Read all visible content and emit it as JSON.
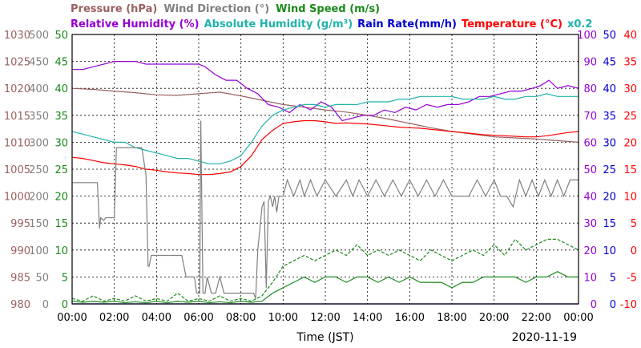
{
  "chart_data": {
    "type": "line",
    "date_label": "2020-11-19",
    "xlabel": "Time (JST)",
    "x_hours_range": [
      0,
      24
    ],
    "x_tick_labels": [
      "00:00",
      "02:00",
      "04:00",
      "06:00",
      "08:00",
      "10:00",
      "12:00",
      "14:00",
      "16:00",
      "18:00",
      "20:00",
      "22:00",
      "00:00"
    ],
    "grid": true,
    "legend_row1": [
      {
        "key": "pressure",
        "text": "Pressure (hPa)",
        "color": "#9a6060"
      },
      {
        "key": "wind_dir",
        "text": "Wind Direction (°)",
        "color": "#808080"
      },
      {
        "key": "wind_speed",
        "text": "Wind Speed (m/s)",
        "color": "#1a8a1a"
      }
    ],
    "legend_row2": [
      {
        "key": "rh",
        "text": "Relative Humidity (%)",
        "color": "#9400d3"
      },
      {
        "key": "ah",
        "text": "Absolute Humidity (g/m³)",
        "color": "#20b2aa"
      },
      {
        "key": "rain",
        "text": "Rain Rate(mm/h)",
        "color": "#0000cd"
      },
      {
        "key": "temp",
        "text": "Temperature (°C)",
        "color": "#ff0000"
      },
      {
        "key": "ah_scale",
        "text": "x0.2",
        "color": "#20b2aa"
      }
    ],
    "axes": {
      "pressure": {
        "min": 980,
        "max": 1030,
        "ticks": [
          "1030",
          "1025",
          "1020",
          "1015",
          "1010",
          "1005",
          "1000",
          "995",
          "990",
          "985",
          "980"
        ],
        "color": "#9a6060"
      },
      "wind_dir": {
        "min": 0,
        "max": 500,
        "ticks": [
          "500",
          "450",
          "400",
          "350",
          "300",
          "250",
          "200",
          "150",
          "100",
          "50",
          "0"
        ],
        "color": "#808080"
      },
      "wind_speed": {
        "min": 0,
        "max": 50,
        "ticks": [
          "50",
          "45",
          "40",
          "35",
          "30",
          "25",
          "20",
          "15",
          "10",
          "5",
          "0"
        ],
        "color": "#1a8a1a"
      },
      "rh": {
        "min": 0,
        "max": 100,
        "ticks": [
          "100",
          "90",
          "80",
          "70",
          "60",
          "50",
          "40",
          "30",
          "20",
          "10",
          "0"
        ],
        "color": "#9400d3"
      },
      "rain": {
        "min": 0,
        "max": 50,
        "ticks": [
          "50",
          "45",
          "40",
          "35",
          "30",
          "25",
          "20",
          "15",
          "10",
          "5",
          "0"
        ],
        "color": "#0000cd"
      },
      "temp": {
        "min": -10,
        "max": 40,
        "ticks": [
          "40",
          "35",
          "30",
          "25",
          "20",
          "15",
          "10",
          "5",
          "0",
          "-5",
          "-10"
        ],
        "color": "#ff0000"
      }
    },
    "series": [
      {
        "key": "pressure",
        "name": "Pressure (hPa)",
        "axis": "pressure",
        "color": "#9a6060",
        "style": "solid",
        "x": [
          0,
          1,
          2,
          3,
          4,
          5,
          6,
          7,
          8,
          9,
          10,
          11,
          12,
          13,
          14,
          15,
          16,
          17,
          18,
          19,
          20,
          21,
          22,
          23,
          24
        ],
        "y": [
          1020,
          1019.8,
          1019.5,
          1019.2,
          1018.8,
          1018.7,
          1019,
          1019.3,
          1018.6,
          1017.8,
          1017,
          1016.5,
          1016,
          1015.6,
          1015,
          1014.3,
          1013.5,
          1012.7,
          1012,
          1011.5,
          1011,
          1010.8,
          1010.6,
          1010.3,
          1010
        ]
      },
      {
        "key": "rh",
        "name": "Relative Humidity (%)",
        "axis": "rh",
        "color": "#9400d3",
        "style": "solid",
        "x": [
          0,
          0.5,
          1,
          1.5,
          2,
          2.5,
          3,
          3.5,
          4,
          4.5,
          5,
          5.5,
          6,
          6.3,
          6.8,
          7.3,
          7.8,
          8.3,
          8.8,
          9.3,
          9.8,
          10.3,
          10.8,
          11.3,
          11.8,
          12.3,
          12.8,
          13.3,
          13.8,
          14.3,
          14.8,
          15.3,
          15.8,
          16.3,
          16.8,
          17.3,
          17.8,
          18.3,
          18.8,
          19.3,
          19.8,
          20.3,
          20.8,
          21.3,
          21.8,
          22.2,
          22.6,
          23,
          23.5,
          24
        ],
        "y": [
          87,
          87,
          88,
          89,
          90,
          90,
          90,
          89,
          89,
          89,
          89,
          89,
          89,
          88,
          85,
          83,
          83,
          80,
          78,
          74,
          73,
          71,
          74,
          72,
          75,
          73,
          68,
          69,
          70,
          70,
          72,
          71,
          73,
          72,
          74,
          73,
          74,
          74,
          75,
          77,
          77,
          78,
          79,
          79,
          80,
          81,
          83,
          80,
          81,
          80
        ]
      },
      {
        "key": "ah",
        "name": "Absolute Humidity (g/m³)",
        "axis": "rh",
        "color": "#20b2aa",
        "style": "solid",
        "x": [
          0,
          0.5,
          1,
          1.5,
          2,
          2.5,
          3,
          3.5,
          4,
          4.5,
          5,
          5.5,
          6,
          6.5,
          7,
          7.5,
          8,
          8.5,
          9,
          9.5,
          10,
          10.5,
          11,
          11.5,
          12,
          12.5,
          13,
          13.5,
          14,
          14.5,
          15,
          15.5,
          16,
          16.5,
          17,
          17.5,
          18,
          18.5,
          19,
          19.5,
          20,
          20.5,
          21,
          21.5,
          22,
          22.5,
          23,
          23.5,
          24
        ],
        "y": [
          64,
          63,
          62,
          61,
          60,
          60,
          58,
          57,
          56,
          55,
          54,
          54,
          53,
          52,
          52,
          53,
          55,
          60,
          66,
          70,
          72,
          73,
          74,
          74,
          73,
          74,
          74,
          74,
          75,
          75,
          75,
          76,
          76,
          77,
          77,
          77,
          77,
          76,
          76,
          76,
          77,
          76,
          76,
          77,
          77,
          78,
          77,
          77,
          77
        ]
      },
      {
        "key": "temp",
        "name": "Temperature (°C)",
        "axis": "temp",
        "color": "#ff0000",
        "style": "solid",
        "x": [
          0,
          0.5,
          1,
          1.5,
          2,
          2.5,
          3,
          3.5,
          4,
          4.5,
          5,
          5.5,
          6,
          6.5,
          7,
          7.5,
          8,
          8.5,
          9,
          9.5,
          10,
          10.5,
          11,
          11.5,
          12,
          12.5,
          13,
          13.5,
          14,
          14.5,
          15,
          15.5,
          16,
          16.5,
          17,
          17.5,
          18,
          18.5,
          19,
          19.5,
          20,
          20.5,
          21,
          21.5,
          22,
          22.5,
          23,
          23.5,
          24
        ],
        "y": [
          17.2,
          17,
          16.6,
          16.2,
          16,
          15.8,
          15.5,
          15,
          14.8,
          14.5,
          14.3,
          14.2,
          14,
          14,
          14.2,
          14.5,
          15.5,
          17.5,
          20.5,
          22.2,
          23.5,
          23.8,
          24,
          24,
          23.8,
          23.5,
          23.6,
          23.5,
          23.4,
          23.2,
          23,
          22.8,
          22.7,
          22.6,
          22.4,
          22.2,
          22,
          21.8,
          21.6,
          21.4,
          21.3,
          21.2,
          21.1,
          21,
          21,
          21.2,
          21.5,
          21.8,
          22
        ]
      },
      {
        "key": "wind_dir",
        "name": "Wind Direction (°)",
        "axis": "wind_dir",
        "color": "#808080",
        "style": "solid",
        "x": [
          0,
          1.2,
          1.3,
          1.35,
          1.5,
          1.6,
          2,
          2.1,
          3,
          3.3,
          3.5,
          3.6,
          3.65,
          3.75,
          4,
          4.5,
          5.2,
          5.4,
          5.8,
          5.9,
          6.0,
          6.05,
          6.1,
          6.2,
          6.3,
          6.4,
          6.6,
          6.8,
          7.0,
          7.2,
          7.5,
          8,
          8.5,
          8.6,
          8.7,
          8.8,
          9,
          9.1,
          9.2,
          9.3,
          9.4,
          9.5,
          9.6,
          9.7,
          9.8,
          9.9,
          10,
          10.2,
          10.5,
          10.8,
          11,
          11.3,
          11.6,
          12,
          12.5,
          13,
          13.3,
          13.6,
          14,
          14.4,
          14.8,
          15.2,
          15.6,
          16,
          16.4,
          16.8,
          17.2,
          17.6,
          18,
          18.4,
          18.8,
          19.2,
          19.6,
          20,
          20.3,
          20.6,
          20.9,
          21.2,
          21.5,
          21.8,
          22.1,
          22.4,
          22.7,
          23,
          23.3,
          23.6,
          24
        ],
        "y": [
          225,
          225,
          140,
          160,
          155,
          160,
          160,
          290,
          290,
          290,
          240,
          70,
          70,
          90,
          90,
          90,
          90,
          50,
          50,
          20,
          20,
          20,
          340,
          20,
          20,
          50,
          20,
          20,
          50,
          20,
          20,
          20,
          20,
          20,
          10,
          100,
          180,
          190,
          30,
          190,
          200,
          180,
          200,
          170,
          200,
          200,
          200,
          230,
          200,
          230,
          200,
          230,
          200,
          230,
          200,
          230,
          200,
          230,
          200,
          230,
          200,
          230,
          200,
          230,
          200,
          230,
          200,
          230,
          200,
          200,
          200,
          230,
          200,
          230,
          200,
          200,
          180,
          230,
          200,
          230,
          200,
          230,
          200,
          230,
          200,
          230,
          230
        ]
      },
      {
        "key": "wind_speed_max",
        "name": "Wind Speed (m/s)",
        "axis": "wind_speed",
        "color": "#1a8a1a",
        "style": "dashed",
        "x": [
          0,
          0.5,
          1,
          1.5,
          2,
          2.5,
          3,
          3.5,
          4,
          4.5,
          5,
          5.5,
          6,
          6.5,
          7,
          7.5,
          8,
          8.5,
          9,
          9.5,
          10,
          10.5,
          11,
          11.5,
          12,
          12.5,
          13,
          13.5,
          14,
          14.5,
          15,
          15.5,
          16,
          16.5,
          17,
          17.5,
          18,
          18.5,
          19,
          19.5,
          20,
          20.5,
          21,
          21.5,
          22,
          22.5,
          23,
          23.5,
          24
        ],
        "y": [
          1,
          0.5,
          1.5,
          0.5,
          1,
          0.5,
          1.5,
          0.5,
          1,
          0.5,
          2,
          0.5,
          1,
          0.5,
          1.5,
          0.5,
          1,
          0.5,
          1.5,
          4,
          7,
          8,
          9,
          8,
          9,
          10,
          9,
          11,
          9,
          10,
          9,
          10,
          9,
          8,
          10,
          9,
          8,
          9,
          10,
          9,
          11,
          9,
          12,
          10,
          11,
          12,
          12,
          11,
          10
        ]
      },
      {
        "key": "wind_speed_avg",
        "name": "Wind Speed (m/s)",
        "axis": "wind_speed",
        "color": "#1a8a1a",
        "style": "solid",
        "x": [
          0,
          0.5,
          1,
          1.5,
          2,
          2.5,
          3,
          3.5,
          4,
          4.5,
          5,
          5.5,
          6,
          6.5,
          7,
          7.5,
          8,
          8.5,
          9,
          9.5,
          10,
          10.5,
          11,
          11.5,
          12,
          12.5,
          13,
          13.5,
          14,
          14.5,
          15,
          15.5,
          16,
          16.5,
          17,
          17.5,
          18,
          18.5,
          19,
          19.5,
          20,
          20.5,
          21,
          21.5,
          22,
          22.5,
          23,
          23.5,
          24
        ],
        "y": [
          0.5,
          0.3,
          0.5,
          0.3,
          0.5,
          0.2,
          0.4,
          0.2,
          0.5,
          0.2,
          0.5,
          0.3,
          0.5,
          0.2,
          0.4,
          0.2,
          0.5,
          0.3,
          0.5,
          2,
          3,
          4,
          5,
          4,
          5,
          5,
          4,
          5,
          5,
          4,
          5,
          4,
          5,
          4,
          4,
          4,
          3,
          4,
          4,
          5,
          5,
          5,
          5,
          4,
          5,
          5,
          6,
          5,
          5
        ]
      },
      {
        "key": "rain",
        "name": "Rain Rate(mm/h)",
        "axis": "rain",
        "color": "#0000cd",
        "style": "solid",
        "x": [
          0,
          24
        ],
        "y": [
          0,
          0
        ]
      }
    ]
  }
}
